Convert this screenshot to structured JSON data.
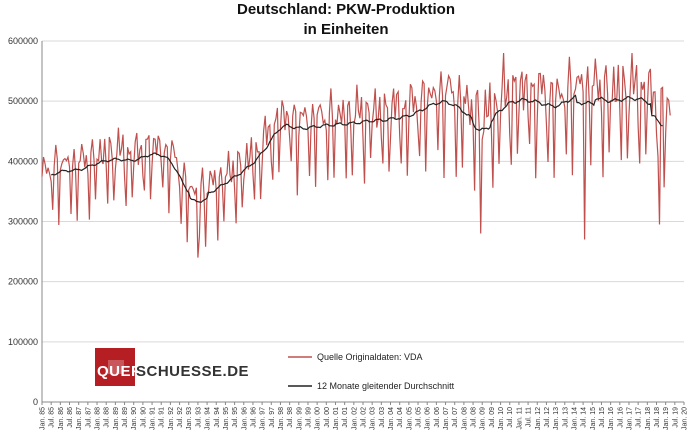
{
  "chart_data": {
    "type": "line",
    "title": "Deutschland: PKW-Produktion",
    "subtitle": "in Einheiten",
    "xlabel": "",
    "ylabel": "",
    "ylim": [
      0,
      600000
    ],
    "yticks": [
      "0",
      "100000",
      "200000",
      "300000",
      "400000",
      "500000",
      "600000"
    ],
    "xlim": [
      "1985-01",
      "2020-01"
    ],
    "xtick_labels": [
      "Jan. 85",
      "Jul. 85",
      "Jan. 86",
      "Jul. 86",
      "Jan. 87",
      "Jul. 87",
      "Jan. 88",
      "Jul. 88",
      "Jan. 89",
      "Jul. 89",
      "Jan. 90",
      "Jul. 90",
      "Jan. 91",
      "Jul. 91",
      "Jan. 92",
      "Jul. 92",
      "Jan. 93",
      "Jul. 93",
      "Jan. 94",
      "Jul. 94",
      "Jan. 95",
      "Jul. 95",
      "Jan. 96",
      "Jul. 96",
      "Jan. 97",
      "Jul. 97",
      "Jan. 98",
      "Jul. 98",
      "Jan. 99",
      "Jul. 99",
      "Jan. 00",
      "Jul. 00",
      "Jan. 01",
      "Jul. 01",
      "Jan. 02",
      "Jul. 02",
      "Jan. 03",
      "Jul. 03",
      "Jan. 04",
      "Jul. 04",
      "Jan. 05",
      "Jul. 05",
      "Jan. 06",
      "Jul. 06",
      "Jan. 07",
      "Jul. 07",
      "Jan. 08",
      "Jul. 08",
      "Jan. 09",
      "Jul. 09",
      "Jan. 10",
      "Jul. 10",
      "Jan. 11",
      "Jul. 11",
      "Jan. 12",
      "Jul. 12",
      "Jan. 13",
      "Jul. 13",
      "Jan. 14",
      "Jul. 14",
      "Jan. 15",
      "Jul. 15",
      "Jan. 16",
      "Jul. 16",
      "Jan. 17",
      "Jul. 17",
      "Jan. 18",
      "Jul. 18",
      "Jan. 19",
      "Jul. 19",
      "Jan. 20"
    ],
    "grid": true,
    "legend_position": "bottom-center",
    "series": [
      {
        "name": "Quelle Originaldaten: VDA",
        "color": "#c0504d",
        "x_start": "1985-01",
        "x_step": "month",
        "annual_mean": [
          350000,
          365000,
          365000,
          378000,
          385000,
          380000,
          395000,
          385000,
          320000,
          325000,
          345000,
          365000,
          392000,
          440000,
          430000,
          435000,
          438000,
          440000,
          445000,
          445000,
          450000,
          465000,
          475000,
          455000,
          420000,
          460000,
          475000,
          470000,
          460000,
          480000,
          478000,
          470000,
          478000,
          472000,
          445000
        ],
        "annual_amplitude": [
          55000,
          55000,
          55000,
          55000,
          55000,
          55000,
          55000,
          55000,
          55000,
          55000,
          55000,
          55000,
          60000,
          65000,
          65000,
          65000,
          65000,
          65000,
          65000,
          70000,
          70000,
          75000,
          75000,
          80000,
          80000,
          80000,
          80000,
          80000,
          80000,
          80000,
          80000,
          80000,
          80000,
          80000,
          75000
        ],
        "noted_points": [
          {
            "x": "1993-07",
            "y": 240000
          },
          {
            "x": "2008-12",
            "y": 280000
          },
          {
            "x": "2010-03",
            "y": 580000
          },
          {
            "x": "2014-08",
            "y": 270000
          },
          {
            "x": "2017-03",
            "y": 580000
          },
          {
            "x": "2018-09",
            "y": 295000
          }
        ]
      },
      {
        "name": "12 Monate gleitender Durchschnitt",
        "color": "#222222",
        "x_start": "1985-07",
        "x_step": "month"
      }
    ]
  },
  "logo": {
    "highlight": "QUER",
    "rest": "SCHUESSE.DE"
  },
  "legend": {
    "items": [
      {
        "label": "Quelle Originaldaten: VDA",
        "color": "#c0504d"
      },
      {
        "label": "12 Monate gleitender Durchschnitt",
        "color": "#222222"
      }
    ]
  }
}
